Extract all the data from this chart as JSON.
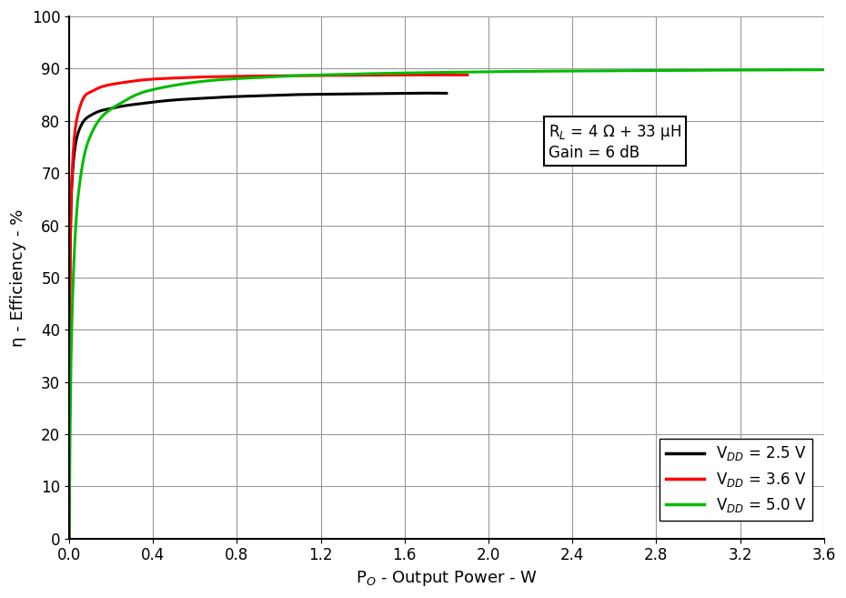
{
  "xlabel": "P$_O$ - Output Power - W",
  "ylabel": "η - Efficiency - %",
  "xlim": [
    0,
    3.6
  ],
  "ylim": [
    0,
    100
  ],
  "xticks": [
    0.0,
    0.4,
    0.8,
    1.2,
    1.6,
    2.0,
    2.4,
    2.8,
    3.2,
    3.6
  ],
  "yticks": [
    0,
    10,
    20,
    30,
    40,
    50,
    60,
    70,
    80,
    90,
    100
  ],
  "colors": [
    "#000000",
    "#ff0000",
    "#00bb00"
  ],
  "background_color": "#ffffff",
  "grid_color": "#999999",
  "annot1": "R$_L$ = 4 Ω + 33 μH",
  "annot2": "Gain = 6 dB",
  "vdd_25_x": [
    0.0,
    0.002,
    0.005,
    0.008,
    0.012,
    0.018,
    0.025,
    0.035,
    0.05,
    0.07,
    0.1,
    0.14,
    0.19,
    0.25,
    0.32,
    0.4,
    0.5,
    0.62,
    0.76,
    0.9,
    1.05,
    1.2,
    1.4,
    1.6,
    1.8
  ],
  "vdd_25_y": [
    0,
    40,
    55,
    62,
    67,
    71,
    74,
    76.5,
    78.5,
    80,
    81,
    81.8,
    82.3,
    82.8,
    83.2,
    83.6,
    84.0,
    84.3,
    84.6,
    84.8,
    85.0,
    85.1,
    85.2,
    85.3,
    85.3
  ],
  "vdd_36_x": [
    0.0,
    0.002,
    0.005,
    0.008,
    0.012,
    0.018,
    0.025,
    0.035,
    0.05,
    0.07,
    0.1,
    0.14,
    0.19,
    0.25,
    0.32,
    0.4,
    0.5,
    0.62,
    0.76,
    0.9,
    1.05,
    1.2,
    1.4,
    1.6,
    1.8,
    1.9
  ],
  "vdd_36_y": [
    0,
    38,
    55,
    63,
    68,
    73,
    77,
    80,
    82.5,
    84.5,
    85.5,
    86.3,
    86.9,
    87.3,
    87.7,
    88.0,
    88.2,
    88.4,
    88.5,
    88.6,
    88.65,
    88.7,
    88.75,
    88.8,
    88.8,
    88.8
  ],
  "vdd_50_x": [
    0.0,
    0.002,
    0.005,
    0.008,
    0.012,
    0.018,
    0.025,
    0.035,
    0.05,
    0.07,
    0.1,
    0.14,
    0.19,
    0.25,
    0.32,
    0.4,
    0.5,
    0.62,
    0.76,
    0.9,
    1.05,
    1.2,
    1.5,
    1.8,
    2.2,
    2.6,
    3.0,
    3.4,
    3.6
  ],
  "vdd_50_y": [
    0,
    10,
    22,
    32,
    40,
    48,
    55,
    62,
    68,
    73,
    77,
    80,
    82,
    83.5,
    85,
    86,
    86.8,
    87.5,
    88.0,
    88.3,
    88.6,
    88.8,
    89.1,
    89.3,
    89.5,
    89.6,
    89.7,
    89.75,
    89.8
  ]
}
